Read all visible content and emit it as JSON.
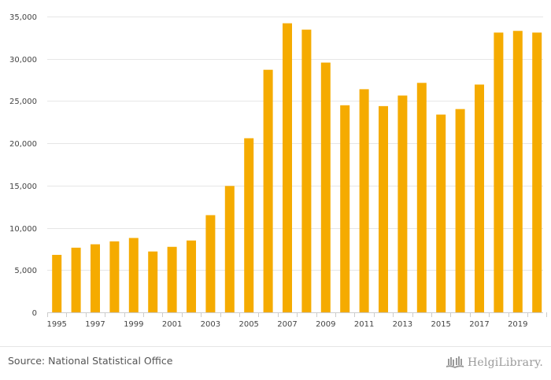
{
  "chart_data": {
    "type": "bar",
    "title": "",
    "xlabel": "",
    "ylabel": "",
    "ylim": [
      0,
      35000
    ],
    "grid": true,
    "color": "#F5AB00",
    "categories": [
      "1995",
      "1996",
      "1997",
      "1998",
      "1999",
      "2000",
      "2001",
      "2002",
      "2003",
      "2004",
      "2005",
      "2006",
      "2007",
      "2008",
      "2009",
      "2010",
      "2011",
      "2012",
      "2013",
      "2014",
      "2015",
      "2016",
      "2017",
      "2018",
      "2019",
      "2020",
      "2021"
    ],
    "values": [
      6800,
      7650,
      8050,
      8400,
      8800,
      7200,
      7750,
      8500,
      11500,
      14950,
      20600,
      28700,
      34200,
      33450,
      29550,
      24500,
      26400,
      24400,
      25650,
      27150,
      23400,
      24050,
      26950,
      33100,
      33300,
      33100,
      0
    ],
    "y_ticks": [
      0,
      5000,
      10000,
      15000,
      20000,
      25000,
      30000,
      35000
    ],
    "y_tick_labels": [
      "0",
      "5,000",
      "10,000",
      "15,000",
      "20,000",
      "25,000",
      "30,000",
      "35,000"
    ],
    "x_tick_labels": [
      "1995",
      "1997",
      "1999",
      "2001",
      "2003",
      "2005",
      "2007",
      "2009",
      "2011",
      "2013",
      "2015",
      "2017",
      "2019"
    ]
  },
  "footer": {
    "source": "Source: National Statistical Office",
    "brand": "HelgiLibrary."
  },
  "icons": {
    "brand_logo": "helgi-library-books-icon"
  }
}
